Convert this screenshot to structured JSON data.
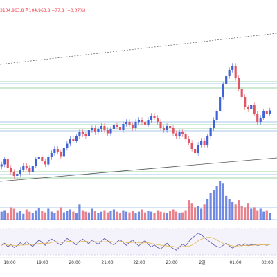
{
  "legend": {
    "ohlc_text": "3104,963.8  종104,963.8  −77.8 (−0.07%)"
  },
  "x_axis": {
    "ticks": [
      "18:00",
      "19:00",
      "20:00",
      "21:00",
      "22:00",
      "23:00",
      "2일",
      "01:00",
      "02:00"
    ]
  },
  "colors": {
    "up": "#4062d8",
    "down": "#e25563",
    "trendline": "#555555",
    "band_green": "#7ec88a",
    "band_blue": "#8bb6e8",
    "rsi": "#5a54a8",
    "rsi_avg": "#e6b84b"
  },
  "chart_data": {
    "type": "candlestick",
    "price_series": [
      104650,
      104700,
      104620,
      104580,
      104540,
      104560,
      104600,
      104640,
      104620,
      104580,
      104640,
      104700,
      104720,
      104680,
      104650,
      104720,
      104760,
      104800,
      104770,
      104730,
      104810,
      104850,
      104900,
      104880,
      104920,
      104960,
      104940,
      104920,
      104980,
      105000,
      104960,
      104990,
      105020,
      104980,
      104950,
      104990,
      105030,
      105010,
      104980,
      105040,
      105060,
      105030,
      105000,
      105060,
      105080,
      105060,
      105030,
      105080,
      105120,
      105100,
      105060,
      105000,
      104980,
      105020,
      105000,
      104950,
      104920,
      104960,
      104940,
      104900,
      104860,
      104800,
      104760,
      104840,
      104880,
      104840,
      104920,
      105000,
      105080,
      105160,
      105300,
      105420,
      105500,
      105560,
      105600,
      105480,
      105380,
      105300,
      105200,
      105180,
      105220,
      105140,
      105060,
      105100,
      105160,
      105140,
      105170
    ],
    "volume_series": [
      12,
      14,
      10,
      18,
      16,
      11,
      13,
      9,
      15,
      12,
      10,
      14,
      17,
      13,
      11,
      16,
      12,
      10,
      14,
      18,
      11,
      13,
      15,
      12,
      10,
      22,
      14,
      12,
      11,
      16,
      13,
      10,
      12,
      14,
      11,
      13,
      15,
      12,
      10,
      14,
      12,
      11,
      13,
      10,
      12,
      15,
      11,
      13,
      12,
      10,
      14,
      12,
      11,
      10,
      13,
      15,
      12,
      10,
      11,
      14,
      28,
      24,
      18,
      20,
      16,
      22,
      30,
      38,
      42,
      48,
      55,
      52,
      34,
      30,
      26,
      22,
      28,
      20,
      18,
      24,
      16,
      18,
      14,
      16,
      12,
      14,
      10
    ],
    "rsi_series": [
      48,
      52,
      45,
      50,
      44,
      47,
      53,
      49,
      55,
      50,
      46,
      52,
      58,
      54,
      48,
      56,
      60,
      57,
      52,
      49,
      55,
      61,
      57,
      53,
      49,
      56,
      60,
      55,
      51,
      58,
      54,
      50,
      56,
      61,
      57,
      52,
      49,
      55,
      59,
      53,
      48,
      54,
      58,
      52,
      47,
      53,
      57,
      50,
      45,
      49,
      44,
      41,
      47,
      52,
      46,
      42,
      39,
      45,
      50,
      47,
      55,
      62,
      66,
      71,
      68,
      63,
      58,
      54,
      49,
      46,
      44,
      48,
      52,
      47,
      43,
      46,
      50,
      47,
      51,
      48,
      49,
      50,
      48,
      49,
      50,
      48,
      50
    ]
  }
}
